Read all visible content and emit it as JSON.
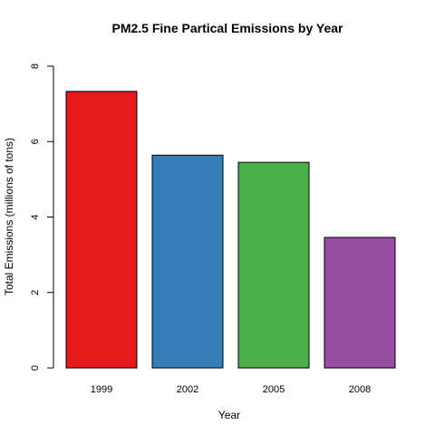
{
  "chart_data": {
    "type": "bar",
    "title": "PM2.5 Fine Partical Emissions by Year",
    "xlabel": "Year",
    "ylabel": "Total Emissions (millions of tons)",
    "categories": [
      "1999",
      "2002",
      "2005",
      "2008"
    ],
    "values": [
      7.33,
      5.64,
      5.45,
      3.46
    ],
    "colors": [
      "#E41A1C",
      "#377EB8",
      "#4DAF4A",
      "#984EA3"
    ],
    "ylim": [
      0,
      8
    ],
    "yticks": [
      "0",
      "2",
      "4",
      "6",
      "8"
    ],
    "grid": false,
    "legend": "none"
  }
}
